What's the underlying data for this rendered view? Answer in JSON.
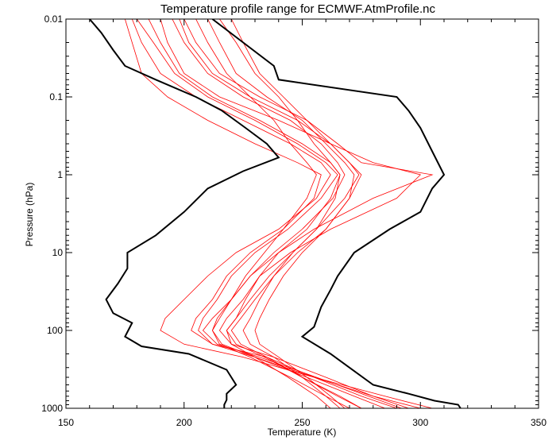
{
  "chart_data": {
    "type": "line",
    "title": "Temperature profile range for ECMWF.AtmProfile.nc",
    "xlabel": "Temperature (K)",
    "ylabel": "Pressure (hPa)",
    "xlim": [
      150,
      350
    ],
    "ylim": [
      1000,
      0.01
    ],
    "yscale": "log",
    "x_ticks": [
      "150",
      "200",
      "250",
      "300",
      "350"
    ],
    "y_ticks": [
      "0.01",
      "0.1",
      "1",
      "10",
      "100",
      "1000"
    ],
    "grid": false,
    "colors": {
      "profiles": "#ff0000",
      "envelope": "#000000"
    },
    "envelope": [
      {
        "name": "min",
        "points": [
          [
            160,
            0.01
          ],
          [
            165,
            0.015
          ],
          [
            170,
            0.025
          ],
          [
            175,
            0.04
          ],
          [
            188,
            0.06
          ],
          [
            205,
            0.1
          ],
          [
            216,
            0.15
          ],
          [
            226,
            0.25
          ],
          [
            235,
            0.4
          ],
          [
            240,
            0.6
          ],
          [
            225,
            0.9
          ],
          [
            210,
            1.5
          ],
          [
            200,
            3
          ],
          [
            188,
            6
          ],
          [
            176,
            10
          ],
          [
            176,
            16
          ],
          [
            172,
            25
          ],
          [
            167,
            40
          ],
          [
            170,
            60
          ],
          [
            178,
            80
          ],
          [
            175,
            120
          ],
          [
            182,
            160
          ],
          [
            202,
            200
          ],
          [
            218,
            320
          ],
          [
            222,
            500
          ],
          [
            218,
            650
          ],
          [
            218,
            780
          ],
          [
            217,
            900
          ],
          [
            217,
            1000
          ]
        ]
      },
      {
        "name": "max",
        "points": [
          [
            212,
            0.01
          ],
          [
            225,
            0.02
          ],
          [
            238,
            0.04
          ],
          [
            240,
            0.06
          ],
          [
            290,
            0.1
          ],
          [
            295,
            0.15
          ],
          [
            300,
            0.25
          ],
          [
            305,
            0.5
          ],
          [
            310,
            1.0
          ],
          [
            305,
            1.5
          ],
          [
            300,
            3
          ],
          [
            287,
            5
          ],
          [
            272,
            10
          ],
          [
            265,
            20
          ],
          [
            262,
            30
          ],
          [
            258,
            50
          ],
          [
            255,
            90
          ],
          [
            250,
            120
          ],
          [
            262,
            200
          ],
          [
            270,
            300
          ],
          [
            280,
            500
          ],
          [
            295,
            650
          ],
          [
            306,
            800
          ],
          [
            316,
            900
          ],
          [
            317,
            1000
          ]
        ]
      }
    ],
    "series": [
      {
        "values": [
          [
            175,
            0.01
          ],
          [
            178,
            0.02
          ],
          [
            182,
            0.05
          ],
          [
            193,
            0.1
          ],
          [
            210,
            0.2
          ],
          [
            230,
            0.4
          ],
          [
            248,
            0.7
          ],
          [
            258,
            1
          ],
          [
            255,
            2
          ],
          [
            242,
            5
          ],
          [
            228,
            10
          ],
          [
            218,
            20
          ],
          [
            212,
            40
          ],
          [
            205,
            70
          ],
          [
            203,
            100
          ],
          [
            212,
            150
          ],
          [
            235,
            220
          ],
          [
            255,
            400
          ],
          [
            275,
            700
          ],
          [
            290,
            1000
          ]
        ]
      },
      {
        "values": [
          [
            195,
            0.01
          ],
          [
            200,
            0.02
          ],
          [
            210,
            0.05
          ],
          [
            225,
            0.1
          ],
          [
            245,
            0.2
          ],
          [
            258,
            0.4
          ],
          [
            265,
            0.7
          ],
          [
            268,
            1
          ],
          [
            263,
            2
          ],
          [
            250,
            5
          ],
          [
            238,
            10
          ],
          [
            228,
            20
          ],
          [
            220,
            40
          ],
          [
            214,
            70
          ],
          [
            212,
            100
          ],
          [
            216,
            150
          ],
          [
            230,
            220
          ],
          [
            252,
            400
          ],
          [
            272,
            700
          ],
          [
            285,
            1000
          ]
        ]
      },
      {
        "values": [
          [
            210,
            0.01
          ],
          [
            215,
            0.02
          ],
          [
            222,
            0.05
          ],
          [
            235,
            0.1
          ],
          [
            250,
            0.2
          ],
          [
            260,
            0.4
          ],
          [
            268,
            0.7
          ],
          [
            272,
            1
          ],
          [
            270,
            2
          ],
          [
            260,
            5
          ],
          [
            248,
            10
          ],
          [
            238,
            20
          ],
          [
            230,
            40
          ],
          [
            224,
            70
          ],
          [
            220,
            100
          ],
          [
            224,
            150
          ],
          [
            235,
            220
          ],
          [
            250,
            400
          ],
          [
            266,
            700
          ],
          [
            275,
            1000
          ]
        ]
      },
      {
        "values": [
          [
            180,
            0.01
          ],
          [
            187,
            0.02
          ],
          [
            196,
            0.05
          ],
          [
            210,
            0.1
          ],
          [
            230,
            0.2
          ],
          [
            248,
            0.4
          ],
          [
            260,
            0.7
          ],
          [
            265,
            1
          ],
          [
            258,
            2
          ],
          [
            244,
            5
          ],
          [
            230,
            10
          ],
          [
            220,
            20
          ],
          [
            214,
            40
          ],
          [
            208,
            70
          ],
          [
            206,
            100
          ],
          [
            212,
            150
          ],
          [
            230,
            220
          ],
          [
            255,
            400
          ],
          [
            285,
            700
          ],
          [
            305,
            1000
          ]
        ]
      },
      {
        "values": [
          [
            190,
            0.01
          ],
          [
            193,
            0.02
          ],
          [
            200,
            0.05
          ],
          [
            215,
            0.1
          ],
          [
            240,
            0.2
          ],
          [
            262,
            0.4
          ],
          [
            280,
            0.7
          ],
          [
            300,
            1
          ],
          [
            290,
            2
          ],
          [
            262,
            5
          ],
          [
            245,
            10
          ],
          [
            232,
            20
          ],
          [
            225,
            40
          ],
          [
            218,
            70
          ],
          [
            215,
            100
          ],
          [
            220,
            150
          ],
          [
            238,
            220
          ],
          [
            260,
            400
          ],
          [
            280,
            700
          ],
          [
            295,
            1000
          ]
        ]
      },
      {
        "values": [
          [
            205,
            0.01
          ],
          [
            210,
            0.02
          ],
          [
            218,
            0.05
          ],
          [
            228,
            0.1
          ],
          [
            238,
            0.2
          ],
          [
            245,
            0.4
          ],
          [
            252,
            0.7
          ],
          [
            256,
            1
          ],
          [
            252,
            2
          ],
          [
            242,
            5
          ],
          [
            234,
            10
          ],
          [
            226,
            20
          ],
          [
            220,
            40
          ],
          [
            215,
            70
          ],
          [
            212,
            100
          ],
          [
            215,
            150
          ],
          [
            228,
            220
          ],
          [
            245,
            400
          ],
          [
            260,
            700
          ],
          [
            270,
            1000
          ]
        ]
      },
      {
        "values": [
          [
            200,
            0.01
          ],
          [
            205,
            0.02
          ],
          [
            215,
            0.05
          ],
          [
            232,
            0.1
          ],
          [
            252,
            0.2
          ],
          [
            265,
            0.4
          ],
          [
            275,
            0.7
          ],
          [
            305,
            1
          ],
          [
            280,
            2
          ],
          [
            255,
            5
          ],
          [
            240,
            10
          ],
          [
            228,
            20
          ],
          [
            220,
            40
          ],
          [
            212,
            70
          ],
          [
            208,
            100
          ],
          [
            214,
            150
          ],
          [
            232,
            220
          ],
          [
            256,
            400
          ],
          [
            278,
            700
          ],
          [
            292,
            1000
          ]
        ]
      },
      {
        "values": [
          [
            185,
            0.01
          ],
          [
            190,
            0.02
          ],
          [
            198,
            0.05
          ],
          [
            212,
            0.1
          ],
          [
            232,
            0.2
          ],
          [
            250,
            0.4
          ],
          [
            262,
            0.7
          ],
          [
            266,
            1
          ],
          [
            262,
            2
          ],
          [
            252,
            5
          ],
          [
            240,
            10
          ],
          [
            232,
            20
          ],
          [
            226,
            40
          ],
          [
            222,
            70
          ],
          [
            218,
            100
          ],
          [
            222,
            150
          ],
          [
            234,
            220
          ],
          [
            250,
            400
          ],
          [
            265,
            700
          ],
          [
            275,
            1000
          ]
        ]
      },
      {
        "values": [
          [
            215,
            0.01
          ],
          [
            222,
            0.02
          ],
          [
            230,
            0.05
          ],
          [
            240,
            0.1
          ],
          [
            248,
            0.2
          ],
          [
            255,
            0.4
          ],
          [
            262,
            0.7
          ],
          [
            266,
            1
          ],
          [
            264,
            2
          ],
          [
            256,
            5
          ],
          [
            246,
            10
          ],
          [
            236,
            20
          ],
          [
            228,
            40
          ],
          [
            222,
            70
          ],
          [
            218,
            100
          ],
          [
            220,
            150
          ],
          [
            230,
            220
          ],
          [
            244,
            400
          ],
          [
            256,
            700
          ],
          [
            262,
            1000
          ]
        ]
      },
      {
        "values": [
          [
            178,
            0.01
          ],
          [
            182,
            0.02
          ],
          [
            190,
            0.05
          ],
          [
            205,
            0.1
          ],
          [
            225,
            0.2
          ],
          [
            245,
            0.4
          ],
          [
            258,
            0.7
          ],
          [
            262,
            1
          ],
          [
            256,
            2
          ],
          [
            240,
            5
          ],
          [
            222,
            10
          ],
          [
            210,
            20
          ],
          [
            200,
            40
          ],
          [
            192,
            70
          ],
          [
            190,
            100
          ],
          [
            200,
            150
          ],
          [
            225,
            220
          ],
          [
            255,
            400
          ],
          [
            280,
            700
          ],
          [
            300,
            1000
          ]
        ]
      },
      {
        "values": [
          [
            198,
            0.01
          ],
          [
            202,
            0.02
          ],
          [
            212,
            0.05
          ],
          [
            228,
            0.1
          ],
          [
            248,
            0.2
          ],
          [
            262,
            0.4
          ],
          [
            270,
            0.7
          ],
          [
            274,
            1
          ],
          [
            268,
            2
          ],
          [
            256,
            5
          ],
          [
            246,
            10
          ],
          [
            238,
            20
          ],
          [
            232,
            40
          ],
          [
            228,
            70
          ],
          [
            225,
            100
          ],
          [
            228,
            150
          ],
          [
            238,
            220
          ],
          [
            250,
            400
          ],
          [
            260,
            700
          ],
          [
            266,
            1000
          ]
        ]
      },
      {
        "values": [
          [
            220,
            0.01
          ],
          [
            225,
            0.02
          ],
          [
            232,
            0.05
          ],
          [
            242,
            0.1
          ],
          [
            252,
            0.2
          ],
          [
            262,
            0.4
          ],
          [
            270,
            0.7
          ],
          [
            275,
            1
          ],
          [
            270,
            2
          ],
          [
            260,
            5
          ],
          [
            250,
            10
          ],
          [
            242,
            20
          ],
          [
            236,
            40
          ],
          [
            232,
            70
          ],
          [
            230,
            100
          ],
          [
            232,
            150
          ],
          [
            240,
            220
          ],
          [
            252,
            400
          ],
          [
            262,
            700
          ],
          [
            268,
            1000
          ]
        ]
      }
    ]
  }
}
